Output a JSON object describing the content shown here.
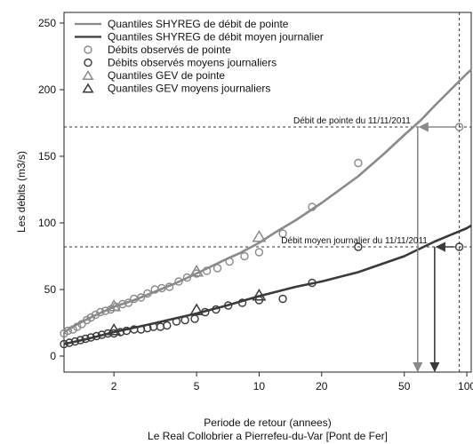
{
  "chart_data": {
    "type": "scatter",
    "title": "",
    "xlabel": "Periode de retour (annees)",
    "subtitle": "Le Real Collobrier a Pierrefeu-du-Var [Pont de Fer]",
    "ylabel": "Les débits (m3/s)",
    "x_scale": "log",
    "xlim": [
      1.15,
      105
    ],
    "ylim": [
      -12,
      258
    ],
    "x_ticks": [
      2,
      5,
      10,
      20,
      50,
      100
    ],
    "x_tick_labels": [
      "2",
      "5",
      "10",
      "20",
      "50",
      "100"
    ],
    "y_ticks": [
      0,
      50,
      100,
      150,
      200,
      250
    ],
    "y_tick_labels": [
      "0",
      "50",
      "100",
      "150",
      "200",
      "250"
    ],
    "legend_position": "top-left",
    "colors": {
      "pointe": "#8a8a8a",
      "moyen": "#3a3a3a",
      "reference": "#333333"
    },
    "legend": [
      {
        "label": "Quantiles SHYREG de débit de pointe",
        "marker": "line",
        "series": "shyreg_pointe"
      },
      {
        "label": "Quantiles SHYREG de débit moyen journalier",
        "marker": "line",
        "series": "shyreg_moyen"
      },
      {
        "label": "Débits observés de pointe",
        "marker": "circle",
        "series": "obs_pointe"
      },
      {
        "label": "Débits observés moyens journaliers",
        "marker": "circle",
        "series": "obs_moyen"
      },
      {
        "label": "Quantiles GEV de pointe",
        "marker": "triangle",
        "series": "gev_pointe"
      },
      {
        "label": "Quantiles GEV moyens journaliers",
        "marker": "triangle",
        "series": "gev_moyen"
      }
    ],
    "series": {
      "shyreg_pointe": {
        "x": [
          1.15,
          1.3,
          1.5,
          1.7,
          2,
          2.5,
          3,
          4,
          5,
          6,
          7,
          8,
          10,
          12,
          15,
          20,
          25,
          30,
          40,
          50,
          60,
          70,
          80,
          90,
          100,
          105
        ],
        "y": [
          18,
          23,
          28,
          32,
          37,
          42,
          47,
          55,
          62,
          68,
          73,
          77,
          85,
          93,
          102,
          115,
          126,
          135,
          152,
          166,
          177,
          188,
          197,
          205,
          212,
          215
        ]
      },
      "shyreg_moyen": {
        "x": [
          1.15,
          1.5,
          2,
          3,
          5,
          7,
          10,
          15,
          20,
          30,
          50,
          70,
          100,
          105
        ],
        "y": [
          9,
          13,
          18,
          24,
          32,
          38,
          45,
          52,
          56,
          63,
          75,
          86,
          96,
          98
        ]
      },
      "obs_pointe": {
        "x": [
          1.15,
          1.2,
          1.27,
          1.33,
          1.4,
          1.48,
          1.55,
          1.63,
          1.72,
          1.82,
          1.93,
          2.05,
          2.2,
          2.35,
          2.5,
          2.7,
          2.9,
          3.15,
          3.4,
          3.7,
          4.1,
          4.5,
          5.0,
          5.6,
          6.3,
          7.2,
          8.5,
          10,
          13,
          18,
          30
        ],
        "y": [
          17,
          19,
          20,
          22,
          24,
          27,
          29,
          31,
          33,
          34,
          35,
          37,
          39,
          40,
          43,
          44,
          47,
          50,
          51,
          52,
          56,
          59,
          62,
          64,
          66,
          71,
          75,
          78,
          92,
          112,
          145
        ]
      },
      "obs_moyen": {
        "x": [
          1.15,
          1.22,
          1.3,
          1.38,
          1.46,
          1.55,
          1.65,
          1.75,
          1.87,
          2.0,
          2.15,
          2.3,
          2.5,
          2.7,
          2.9,
          3.1,
          3.35,
          3.6,
          4.0,
          4.4,
          4.9,
          5.5,
          6.2,
          7.1,
          8.3,
          10,
          13,
          18,
          30
        ],
        "y": [
          9,
          10,
          11,
          12,
          13,
          14,
          15,
          16,
          17,
          17,
          18,
          19,
          20,
          20,
          21,
          22,
          22,
          23,
          26,
          27,
          28,
          33,
          35,
          38,
          40,
          42,
          43,
          55,
          82
        ]
      },
      "gev_pointe": {
        "x": [
          2,
          5,
          10
        ],
        "y": [
          37,
          63,
          89
        ]
      },
      "gev_moyen": {
        "x": [
          2,
          5,
          10
        ],
        "y": [
          19,
          34,
          45
        ]
      }
    },
    "annotations": [
      {
        "text": "Débit de pointe du 11/11/2011",
        "y": 172,
        "t_curve": 58,
        "t_obs": 92
      },
      {
        "text": "Débit moyen journalier du 11/11/2011",
        "y": 82,
        "t_curve": 70,
        "t_obs": 92
      }
    ],
    "reference_lines": {
      "x_vertical": 92
    }
  }
}
